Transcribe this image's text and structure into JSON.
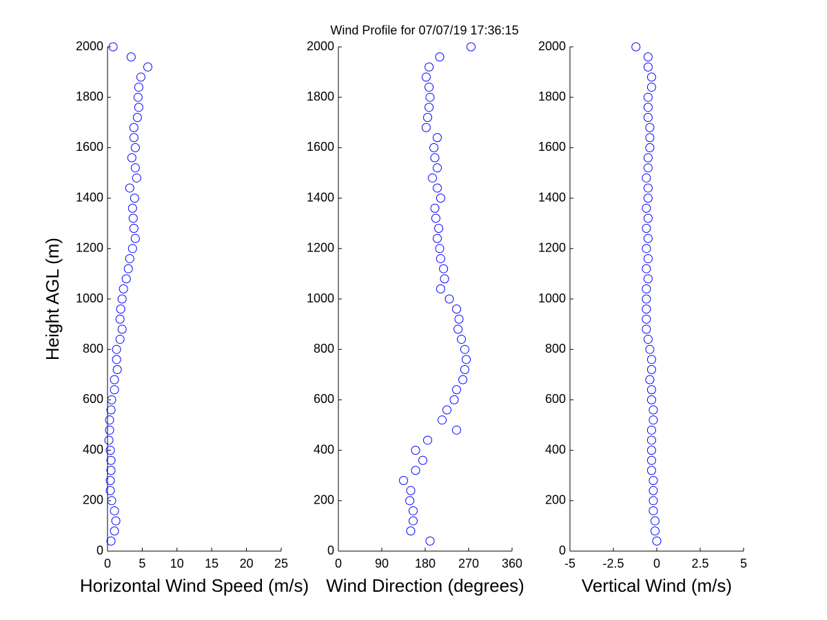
{
  "chart_data": [
    {
      "type": "scatter",
      "xlabel": "Horizontal Wind Speed (m/s)",
      "ylabel": "Height AGL (m)",
      "color": "#0000ff",
      "xlim": [
        0,
        25
      ],
      "xticks": [
        0,
        5,
        10,
        15,
        20,
        25
      ],
      "ylim": [
        0,
        2000
      ],
      "yticks": [
        0,
        200,
        400,
        600,
        800,
        1000,
        1200,
        1400,
        1600,
        1800,
        2000
      ],
      "x": [
        0.5,
        1.0,
        1.2,
        1.0,
        0.6,
        0.4,
        0.4,
        0.5,
        0.5,
        0.4,
        0.2,
        0.3,
        0.3,
        0.5,
        0.6,
        1.0,
        1.0,
        1.4,
        1.3,
        1.3,
        1.8,
        2.1,
        1.8,
        1.9,
        2.1,
        2.3,
        2.7,
        3.0,
        3.2,
        3.6,
        4.0,
        3.8,
        3.7,
        3.6,
        3.9,
        3.2,
        4.2,
        4.0,
        3.5,
        4.0,
        3.8,
        3.8,
        4.3,
        4.5,
        4.4,
        4.5,
        4.8,
        5.8,
        3.4,
        0.8
      ],
      "values": [
        40,
        80,
        120,
        160,
        200,
        240,
        280,
        320,
        360,
        400,
        440,
        480,
        520,
        560,
        600,
        640,
        680,
        720,
        760,
        800,
        840,
        880,
        920,
        960,
        1000,
        1040,
        1080,
        1120,
        1160,
        1200,
        1240,
        1280,
        1320,
        1360,
        1400,
        1440,
        1480,
        1520,
        1560,
        1600,
        1640,
        1680,
        1720,
        1760,
        1800,
        1840,
        1880,
        1920,
        1960,
        2000
      ]
    },
    {
      "type": "scatter",
      "title": "Wind Profile for  07/07/19 17:36:15",
      "xlabel": "Wind Direction (degrees)",
      "color": "#0000ff",
      "xlim": [
        0,
        360
      ],
      "xticks": [
        0,
        90,
        180,
        270,
        360
      ],
      "ylim": [
        0,
        2000
      ],
      "yticks": [
        0,
        200,
        400,
        600,
        800,
        1000,
        1200,
        1400,
        1600,
        1800,
        2000
      ],
      "x": [
        190,
        150,
        155,
        155,
        148,
        150,
        135,
        160,
        175,
        160,
        185,
        245,
        215,
        225,
        240,
        245,
        258,
        262,
        265,
        262,
        255,
        248,
        250,
        245,
        230,
        212,
        220,
        218,
        212,
        210,
        205,
        208,
        202,
        200,
        212,
        205,
        195,
        205,
        200,
        198,
        205,
        182,
        185,
        188,
        190,
        188,
        182,
        188,
        210,
        275
      ],
      "values": [
        40,
        80,
        120,
        160,
        200,
        240,
        280,
        320,
        360,
        400,
        440,
        480,
        520,
        560,
        600,
        640,
        680,
        720,
        760,
        800,
        840,
        880,
        920,
        960,
        1000,
        1040,
        1080,
        1120,
        1160,
        1200,
        1240,
        1280,
        1320,
        1360,
        1400,
        1440,
        1480,
        1520,
        1560,
        1600,
        1640,
        1680,
        1720,
        1760,
        1800,
        1840,
        1880,
        1920,
        1960,
        2000
      ]
    },
    {
      "type": "scatter",
      "xlabel": "Vertical Wind (m/s)",
      "color": "#0000ff",
      "xlim": [
        -5,
        5
      ],
      "xticks": [
        -5,
        -2.5,
        0,
        2.5,
        5
      ],
      "ylim": [
        0,
        2000
      ],
      "yticks": [
        0,
        200,
        400,
        600,
        800,
        1000,
        1200,
        1400,
        1600,
        1800,
        2000
      ],
      "x": [
        0.0,
        -0.1,
        -0.1,
        -0.2,
        -0.2,
        -0.2,
        -0.2,
        -0.3,
        -0.3,
        -0.3,
        -0.3,
        -0.3,
        -0.2,
        -0.2,
        -0.3,
        -0.3,
        -0.4,
        -0.3,
        -0.3,
        -0.4,
        -0.5,
        -0.6,
        -0.6,
        -0.6,
        -0.6,
        -0.6,
        -0.5,
        -0.6,
        -0.5,
        -0.6,
        -0.5,
        -0.6,
        -0.5,
        -0.6,
        -0.5,
        -0.5,
        -0.6,
        -0.5,
        -0.5,
        -0.4,
        -0.4,
        -0.4,
        -0.5,
        -0.5,
        -0.5,
        -0.3,
        -0.3,
        -0.5,
        -0.5,
        -1.2
      ],
      "values": [
        40,
        80,
        120,
        160,
        200,
        240,
        280,
        320,
        360,
        400,
        440,
        480,
        520,
        560,
        600,
        640,
        680,
        720,
        760,
        800,
        840,
        880,
        920,
        960,
        1000,
        1040,
        1080,
        1120,
        1160,
        1200,
        1240,
        1280,
        1320,
        1360,
        1400,
        1440,
        1480,
        1520,
        1560,
        1600,
        1640,
        1680,
        1720,
        1760,
        1800,
        1840,
        1880,
        1920,
        1960,
        2000
      ]
    }
  ]
}
